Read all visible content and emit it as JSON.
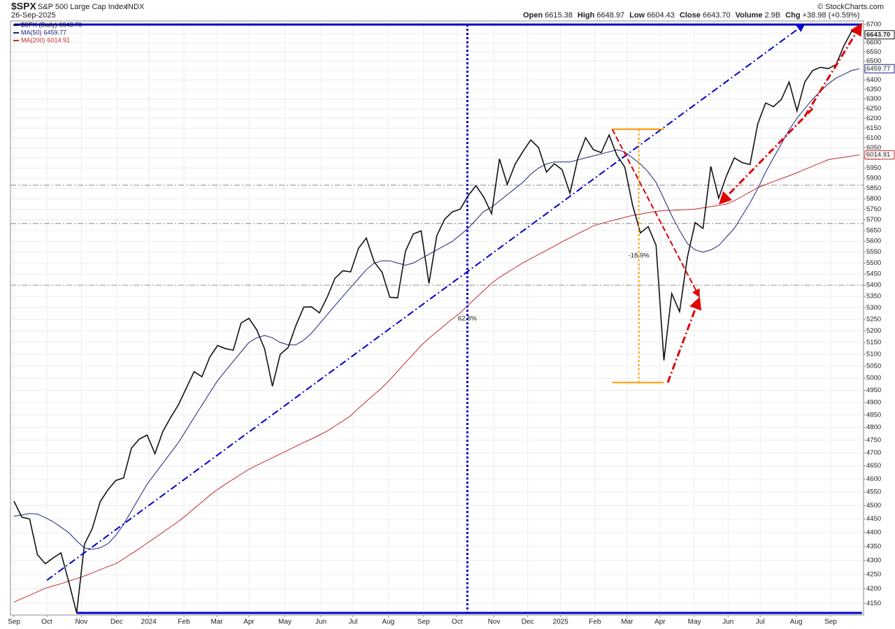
{
  "chart_data": {
    "type": "line",
    "symbol": "$SPX",
    "title": "S&P 500 Large Cap Index",
    "exchange": "INDX",
    "date": "26-Sep-2025",
    "source": "© StockCharts.com",
    "ohlc": [
      {
        "label": "Open",
        "value": "6615.38"
      },
      {
        "label": "High",
        "value": "6648.97"
      },
      {
        "label": "Low",
        "value": "6604.43"
      },
      {
        "label": "Close",
        "value": "6643.70"
      },
      {
        "label": "Volume",
        "value": "2.9B"
      },
      {
        "label": "Chg",
        "value": "+38.98 (+0.59%)"
      }
    ],
    "log_scale": true,
    "grid": true,
    "legend": "top-left",
    "xlim": [
      -0.45,
      108.5
    ],
    "xticks": [
      {
        "value": 0,
        "label": "Sep"
      },
      {
        "value": 4.2,
        "label": "Oct"
      },
      {
        "value": 8.6,
        "label": "Nov"
      },
      {
        "value": 13.1,
        "label": "Dec"
      },
      {
        "value": 17.2,
        "label": "2024"
      },
      {
        "value": 21.7,
        "label": "Feb"
      },
      {
        "value": 25.9,
        "label": "Mar"
      },
      {
        "value": 30,
        "label": "Apr"
      },
      {
        "value": 34.6,
        "label": "May"
      },
      {
        "value": 39.2,
        "label": "Jun"
      },
      {
        "value": 43.3,
        "label": "Jul"
      },
      {
        "value": 47.8,
        "label": "Aug"
      },
      {
        "value": 52.3,
        "label": "Sep"
      },
      {
        "value": 56.6,
        "label": "Oct"
      },
      {
        "value": 61.3,
        "label": "Nov"
      },
      {
        "value": 65.6,
        "label": "Dec"
      },
      {
        "value": 69.8,
        "label": "2025"
      },
      {
        "value": 74.2,
        "label": "Feb"
      },
      {
        "value": 78.3,
        "label": "Mar"
      },
      {
        "value": 82.5,
        "label": "Apr"
      },
      {
        "value": 86.9,
        "label": "May"
      },
      {
        "value": 91.2,
        "label": "Jun"
      },
      {
        "value": 95.3,
        "label": "Jul"
      },
      {
        "value": 99.9,
        "label": "Aug"
      },
      {
        "value": 104.3,
        "label": "Sep"
      }
    ],
    "ylim": [
      4110,
      6720
    ],
    "yticks": [
      4150,
      4200,
      4250,
      4300,
      4350,
      4400,
      4450,
      4500,
      4550,
      4600,
      4650,
      4700,
      4750,
      4800,
      4850,
      4900,
      4950,
      5000,
      5050,
      5100,
      5150,
      5200,
      5250,
      5300,
      5350,
      5400,
      5450,
      5500,
      5550,
      5600,
      5650,
      5700,
      5750,
      5800,
      5850,
      5900,
      5950,
      6000,
      6050,
      6100,
      6150,
      6200,
      6250,
      6300,
      6350,
      6400,
      6450,
      6500,
      6550,
      6600,
      6650,
      6700
    ],
    "series": [
      {
        "name": "$SPX (Daily)",
        "color": "#111111",
        "label": "6643.70",
        "values": [
          4516,
          4457,
          4450,
          4320,
          4288,
          4309,
          4327,
          4224,
          4117,
          4358,
          4415,
          4514,
          4559,
          4594,
          4604,
          4719,
          4754,
          4770,
          4697,
          4784,
          4840,
          4891,
          4959,
          5027,
          5006,
          5088,
          5137,
          5124,
          5117,
          5234,
          5254,
          5204,
          5123,
          4967,
          5100,
          5128,
          5223,
          5303,
          5304,
          5278,
          5347,
          5431,
          5465,
          5460,
          5567,
          5615,
          5505,
          5459,
          5346,
          5344,
          5554,
          5634,
          5648,
          5408,
          5626,
          5703,
          5738,
          5751,
          5815,
          5864,
          5808,
          5729,
          5995,
          5870,
          5969,
          6032,
          6090,
          6051,
          5930,
          5971,
          5942,
          5827,
          5997,
          6101,
          6041,
          6026,
          6115,
          6013,
          5955,
          5770,
          5639,
          5668,
          5581,
          5074,
          5363,
          5283,
          5525,
          5687,
          5660,
          5958,
          5803,
          5912,
          6000,
          5977,
          5967,
          6173,
          6279,
          6260,
          6297,
          6389,
          6238,
          6389,
          6450,
          6467,
          6460,
          6482,
          6584,
          6664,
          6643.7
        ]
      },
      {
        "name": "MA(50)",
        "color": "#1a237e",
        "label": "6459.77",
        "values": [
          4460,
          4465,
          4470,
          4468,
          4455,
          4440,
          4420,
          4400,
          4370,
          4345,
          4340,
          4345,
          4360,
          4390,
          4430,
          4480,
          4530,
          4580,
          4620,
          4660,
          4700,
          4740,
          4790,
          4840,
          4890,
          4940,
          4990,
          5030,
          5070,
          5110,
          5150,
          5170,
          5180,
          5170,
          5150,
          5140,
          5140,
          5160,
          5190,
          5230,
          5270,
          5310,
          5350,
          5390,
          5430,
          5470,
          5500,
          5510,
          5510,
          5500,
          5490,
          5500,
          5520,
          5540,
          5560,
          5580,
          5600,
          5630,
          5660,
          5700,
          5740,
          5760,
          5790,
          5820,
          5850,
          5880,
          5920,
          5950,
          5970,
          5980,
          5980,
          5980,
          5990,
          6000,
          6010,
          6020,
          6030,
          6040,
          6030,
          6000,
          5970,
          5930,
          5880,
          5800,
          5720,
          5650,
          5590,
          5560,
          5550,
          5560,
          5580,
          5620,
          5660,
          5720,
          5780,
          5850,
          5930,
          6000,
          6070,
          6140,
          6200,
          6250,
          6300,
          6340,
          6380,
          6410,
          6430,
          6450,
          6459.77
        ]
      },
      {
        "name": "MA(200)",
        "color": "#c62828",
        "label": "6014.91",
        "values": [
          4154,
          4166,
          4178,
          4190,
          4202,
          4210,
          4218,
          4227,
          4236,
          4245,
          4256,
          4267,
          4278,
          4288,
          4306,
          4324,
          4342,
          4362,
          4381,
          4401,
          4421,
          4441,
          4464,
          4489,
          4513,
          4538,
          4560,
          4580,
          4599,
          4618,
          4637,
          4652,
          4667,
          4681,
          4696,
          4711,
          4726,
          4741,
          4755,
          4770,
          4786,
          4806,
          4826,
          4847,
          4877,
          4905,
          4933,
          4961,
          4993,
          5029,
          5065,
          5101,
          5137,
          5168,
          5196,
          5224,
          5252,
          5278,
          5311,
          5344,
          5376,
          5409,
          5435,
          5457,
          5479,
          5501,
          5520,
          5539,
          5558,
          5577,
          5598,
          5616,
          5635,
          5653,
          5672,
          5683,
          5693,
          5702,
          5712,
          5721,
          5727,
          5734,
          5740,
          5744,
          5745,
          5747,
          5749,
          5751,
          5757,
          5763,
          5769,
          5775,
          5791,
          5812,
          5833,
          5854,
          5869,
          5884,
          5898,
          5912,
          5927,
          5943,
          5959,
          5975,
          5991,
          5998,
          6003,
          6009,
          6014.91
        ]
      }
    ],
    "reference_lines": {
      "color": "#9e9e9e",
      "values": [
        5866,
        5683,
        5400
      ]
    },
    "annotations": [
      {
        "color": "#0000cc",
        "style": "dashdot",
        "width": 2,
        "arrow": true,
        "points": [
          [
            4.2,
            4230
          ],
          [
            100.9,
            6700
          ]
        ]
      },
      {
        "color": "#0000cc",
        "style": "solid",
        "width": 3,
        "points": [
          [
            0,
            6700
          ],
          [
            108.3,
            6700
          ]
        ]
      },
      {
        "color": "#0000cc",
        "style": "solid",
        "width": 3,
        "points": [
          [
            8.0,
            4117
          ],
          [
            108.3,
            4117
          ]
        ]
      },
      {
        "color": "#0000cc",
        "style": "dotted",
        "width": 3,
        "label": "62.8%",
        "points": [
          [
            57.9,
            6700
          ],
          [
            57.9,
            4117
          ]
        ]
      },
      {
        "color": "#ff9800",
        "style": "solid",
        "width": 2,
        "points": [
          [
            76.4,
            6144
          ],
          [
            83.0,
            6144
          ]
        ]
      },
      {
        "color": "#ff9800",
        "style": "solid",
        "width": 2,
        "points": [
          [
            76.4,
            4982
          ],
          [
            83.0,
            4982
          ]
        ]
      },
      {
        "color": "#ff9800",
        "style": "dotted",
        "width": 2,
        "label": "-18.9%",
        "points": [
          [
            79.8,
            6144
          ],
          [
            79.8,
            4982
          ]
        ]
      },
      {
        "color": "#e00000",
        "style": "dashed",
        "width": 2,
        "arrow": true,
        "points": [
          [
            76.4,
            6144
          ],
          [
            87.5,
            5350
          ]
        ]
      },
      {
        "color": "#e00000",
        "style": "dashdot",
        "width": 3,
        "arrow": true,
        "points": [
          [
            83.5,
            4982
          ],
          [
            87.5,
            5340
          ]
        ]
      },
      {
        "color": "#e00000",
        "style": "dashdot",
        "width": 3,
        "arrow": true,
        "points": [
          [
            102.0,
            6250
          ],
          [
            90.2,
            5780
          ]
        ]
      },
      {
        "color": "#e00000",
        "style": "dashdot",
        "width": 3,
        "arrow": true,
        "points": [
          [
            101.0,
            6210
          ],
          [
            108.2,
            6700
          ]
        ]
      }
    ]
  }
}
